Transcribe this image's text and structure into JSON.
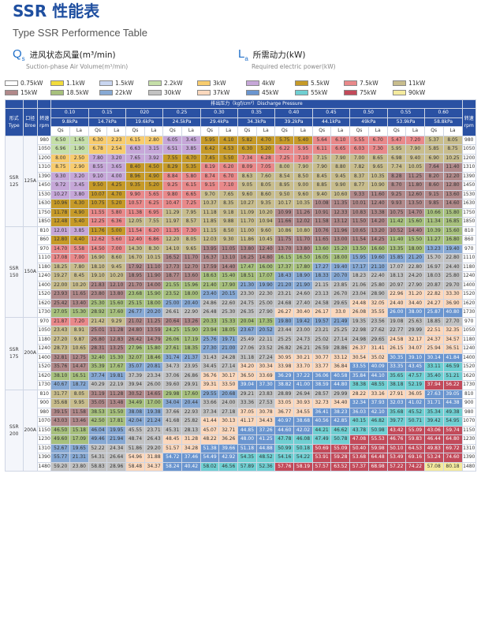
{
  "title": "SSR 性能表",
  "subtitle": "Type SSR Performence Table",
  "legend_qs": {
    "symbol": "Q",
    "sub": "s",
    "cn": "进风状态风量(m³/min)",
    "en": "Suction-phase Air Volume(m³/min)"
  },
  "legend_la": {
    "symbol": "L",
    "sub": "a",
    "cn": "所需动力(kW)",
    "en": "Required electric power(kW)"
  },
  "power_legend": [
    {
      "label": "0.75kW",
      "color": "#ffffff"
    },
    {
      "label": "1.1kW",
      "color": "#f2dc3c"
    },
    {
      "label": "1.5kW",
      "color": "#c9d6f0"
    },
    {
      "label": "2.2kW",
      "color": "#c5dfa8"
    },
    {
      "label": "3kW",
      "color": "#f8cc6e"
    },
    {
      "label": "4kW",
      "color": "#c6a7d8"
    },
    {
      "label": "5.5kW",
      "color": "#c69a28"
    },
    {
      "label": "7.5kW",
      "color": "#e9898a"
    },
    {
      "label": "11kW",
      "color": "#c8bd8d"
    },
    {
      "label": "15kW",
      "color": "#b1898a"
    },
    {
      "label": "18.5kW",
      "color": "#a7c07d"
    },
    {
      "label": "22kW",
      "color": "#87a9d4"
    },
    {
      "label": "30kW",
      "color": "#c2c2c2"
    },
    {
      "label": "37kW",
      "color": "#fbd8bd"
    },
    {
      "label": "45kW",
      "color": "#6a95cf"
    },
    {
      "label": "55kW",
      "color": "#6fcfd2"
    },
    {
      "label": "75kW",
      "color": "#c24a5a"
    },
    {
      "label": "90kW",
      "color": "#f4ea9e"
    }
  ],
  "table": {
    "pressure_header": "排出压力（kgf/cm²）Discharge Pressure",
    "form_cn": "形式",
    "form_en": "Type",
    "bore_cn": "口径",
    "bore_en": "Broe",
    "rpm_cn": "转速",
    "rpm_en": "rpm",
    "qs": "Qs",
    "la": "La",
    "pressures": [
      "0.10",
      "0.15",
      "020",
      "0.25",
      "0.30",
      "0.35",
      "0.40",
      "0.45",
      "0.50",
      "0.55",
      "0.60"
    ],
    "kpa": [
      "9.8kPa",
      "14.7kPa",
      "19.6kPa",
      "24.5kPa",
      "29.4kPa",
      "34.3kPa",
      "39.2kPa",
      "44.1kPa",
      "49kPa",
      "53.9kPa",
      "58.8kPa"
    ],
    "models": [
      {
        "name": "SSR\n125",
        "bore": "125A",
        "rows": [
          [
            "980",
            "6.50 1.65 6.30 2.23 6.15 2.80 6.05 3.45 5.95 4.10 5.82 4.70 5.75 5.40 5.64 6.10 5.55 6.70 5.47 7.20 5.37 8.05"
          ],
          [
            "1050",
            "6.96 1.90 6.78 2.54 6.63 3.15 6.51 3.85 6.42 4.53 6.30 5.20 6.22 5.95 6.11 6.65 6.03 7.30 5.95 7.90 5.85 8.75"
          ],
          [
            "1200",
            "8.00 2.50 7.80 3.20 7.65 3.92 7.55 4.70 7.45 5.50 7.34 6.28 7.25 7.10 7.15 7.90 7.00 8.65 6.98 9.40 6.90 10.25"
          ],
          [
            "1310",
            "8.75 2.90 8.55 3.65 8.40 4.50 8.29 5.35 8.19 6.20 8.09 7.05 8.00 7.90 7.90 8.80 7.82 9.65 7.74 10.05 7.64 11.40"
          ],
          [
            "1390",
            "9.30 3.20 9.10 4.00 8.96 4.90 8.84 5.80 8.74 6.70 8.63 7.60 8.54 8.50 8.45 9.45 8.37 10.35 8.28 11.25 8.20 12.20"
          ],
          [
            "1450",
            "9.72 3.45 9.50 4.25 9.35 5.20 9.25 6.15 9.15 7.10 9.05 8.05 8.95 9.00 8.85 9.90 8.77 10.90 8.70 11.80 8.60 12.80"
          ],
          [
            "1530",
            "10.27 3.80 10.07 4.70 9.90 5.65 9.80 6.65 9.70 7.65 9.60 8.60 9.50 9.60 9.40 10.60 9.33 11.60 9.25 12.60 9.15 13.60"
          ],
          [
            "1630",
            "10.96 4.30 10.75 5.20 10.57 6.25 10.47 7.25 10.37 8.35 10.27 9.35 10.17 10.35 10.08 11.35 10.01 12.40 9.93 13.50 9.85 14.60"
          ],
          [
            "1750",
            "11.78 4.90 11.55 5.80 11.38 6.95 11.29 7.95 11.18 9.18 11.09 10.20 10.99 11.26 10.91 12.33 10.83 13.38 10.75 14.70 10.66 15.80"
          ],
          [
            "1850",
            "12.48 5.40 12.25 6.36 12.05 7.55 11.97 8.57 11.85 9.88 11.70 10.94 11.66 12.02 11.58 13.12 11.50 14.20 11.42 15.60 11.34 16.85"
          ]
        ]
      },
      {
        "name": "SSR\n150",
        "bore": "150A",
        "rows": [
          [
            "810",
            "12.01 3.85 11.76 5.00 11.54 6.20 11.35 7.30 11.15 8.50 11.00 9.60 10.86 10.80 10.76 11.96 10.65 13.20 10.52 14.40 10.39 15.60"
          ],
          [
            "860",
            "12.80 4.40 12.62 5.60 12.40 6.86 12.20 8.05 12.03 9.30 11.86 10.45 11.75 11.70 11.65 13.00 11.54 14.25 11.40 15.50 11.27 16.80"
          ],
          [
            "970",
            "14.70 5.58 14.50 7.00 14.30 8.30 14.10 9.65 13.95 11.05 13.80 12.40 13.70 13.80 13.60 15.20 13.50 16.60 13.35 18.00 13.23 19.40"
          ],
          [
            "1110",
            "17.08 7.00 16.90 8.60 16.70 10.15 16.52 11.70 16.37 13.10 16.25 14.80 16.15 16.50 16.05 18.00 15.95 19.60 15.85 21.20 15.70 22.80"
          ],
          [
            "1180",
            "18.25 7.80 18.10 9.45 17.92 11.10 17.73 12.70 17.59 14.40 17.47 16.00 17.37 17.80 17.27 19.40 17.17 21.10 17.07 22.80 16.97 24.40"
          ],
          [
            "1240",
            "19.27 8.45 19.10 10.20 18.95 11.90 18.77 13.60 18.63 15.40 18.51 17.07 18.43 18.90 18.33 20.70 18.23 22.40 18.13 24.20 18.03 25.80"
          ],
          [
            "1400",
            "22.00 10.20 21.83 12.10 21.70 14.00 21.55 15.96 21.40 17.90 21.30 19.90 21.20 21.90 21.15 23.85 21.06 25.80 20.97 27.90 20.87 29.70"
          ],
          [
            "1520",
            "23.93 11.65 23.80 13.80 23.68 15.90 23.52 18.00 23.40 20.15 23.30 22.30 23.21 24.60 23.13 26.70 23.04 28.90 22.96 31.20 22.82 33.30"
          ],
          [
            "1620",
            "25.42 13.40 25.30 15.60 25.15 18.00 25.00 20.40 24.86 22.60 24.75 25.00 24.68 27.40 24.58 29.65 24.48 32.05 24.40 34.40 24.27 36.90"
          ],
          [
            "1730",
            "27.05 15.30 28.92 17.60 26.77 20.20 26.61 22.90 26.48 25.30 26.35 27.90 26.27 30.40 26.17 33.0 26.08 35.55 26.00 38.00 25.87 40.80"
          ]
        ]
      },
      {
        "name": "SSR\n175",
        "bore": "200A",
        "rows": [
          [
            "970",
            "21.87 7.20 21.42 9.29 21.02 11.25 20.64 13.26 20.33 15.33 20.04 17.35 19.80 19.42 19.57 21.49 19.35 23.56 19.08 25.63 18.85 27.70"
          ],
          [
            "1050",
            "23.43 8.91 25.01 11.28 24.80 13.59 24.25 15.90 23.94 18.05 23.67 20.52 23.44 23.00 23.21 25.25 22.98 27.62 22.77 29.99 22.51 32.35"
          ],
          [
            "1180",
            "27.20 9.87 26.80 12.83 26.42 14.79 26.06 17.19 25.76 19.71 25.49 22.11 25.25 24.73 25.02 27.14 24.98 29.65 24.58 32.17 24.37 34.57"
          ],
          [
            "1240",
            "28.73 10.65 28.31 13.25 27.96 15.80 27.61 18.35 27.30 21.00 27.06 23.52 26.82 26.21 26.59 28.86 26.37 31.41 26.15 34.07 25.94 36.51"
          ],
          [
            "1400",
            "32.81 12.75 32.40 15.30 32.07 18.46 31.74 21.37 31.43 24.28 31.18 27.24 30.95 30.21 30.77 33.12 30.54 35.02 30.35 39.10 30.14 41.84"
          ],
          [
            "1520",
            "35.76 14.47 35.39 17.67 35.07 20.81 34.73 23.95 34.45 27.14 34.20 30.34 33.98 33.70 33.77 36.84 33.55 40.09 33.35 43.45 33.11 46.59"
          ],
          [
            "1620",
            "38.10 16.51 37.74 19.81 37.39 23.34 37.06 26.86 36.76 30.17 36.50 33.69 36.29 37.22 36.06 40.58 35.84 44.10 35.65 47.57 35.40 51.21"
          ],
          [
            "1730",
            "40.67 18.72 40.29 22.19 39.94 26.00 39.60 29.91 39.31 33.50 39.04 37.30 38.82 41.00 38.59 44.80 38.38 48.55 38.18 52.19 37.94 56.22"
          ]
        ]
      },
      {
        "name": "SSR\n200",
        "bore": "200A",
        "rows": [
          [
            "810",
            "31.77 8.05 31.19 11.28 30.52 14.65 29.98 17.60 29.55 20.68 29.21 23.83 28.89 26.94 28.57 29.99 28.22 33.16 27.91 36.05 27.63 39.05"
          ],
          [
            "900",
            "35.68 9.95 35.05 13.48 34.49 17.00 34.04 20.44 33.66 24.00 33.36 27.53 33.05 30.93 32.73 34.40 32.34 37.93 32.03 41.02 31.71 44.38"
          ],
          [
            "980",
            "39.15 11.58 38.53 15.50 38.08 19.38 37.66 22.93 37.34 27.18 37.05 30.78 36.77 34.55 36.41 38.23 36.03 42.10 35.68 45.52 35.34 49.38"
          ],
          [
            "1070",
            "43.03 13.46 42.50 17.81 42.04 21.24 41.68 25.82 41.44 30.13 41.17 34.43 40.97 38.68 40.56 42.85 40.15 46.82 39.77 50.71 39.42 54.95"
          ],
          [
            "1150",
            "46.50 15.18 46.04 19.95 45.55 23.71 45.31 28.13 45.07 32.71 44.85 37.26 44.60 42.02 44.21 46.62 43.78 50.98 43.42 55.09 43.06 59.74"
          ],
          [
            "1230",
            "49.60 17.09 49.46 21.94 48.74 26.43 48.45 31.28 48.22 36.26 48.00 41.25 47.78 46.08 47.49 50.78 47.08 55.53 46.76 59.83 46.44 64.80"
          ],
          [
            "1310",
            "52.67 19.65 52.22 24.34 51.86 29.20 51.57 34.28 51.38 39.66 51.18 44.88 50.99 50.18 50.69 55.09 50.40 59.98 50.10 64.53 49.83 69.72"
          ],
          [
            "1390",
            "55.77 21.31 54.31 26.64 54.96 31.88 54.72 37.46 54.49 42.92 54.35 48.52 54.16 54.22 53.91 59.28 53.68 64.48 53.49 69.16 53.24 74.60"
          ],
          [
            "1480",
            "59.20 23.80 58.83 28.96 58.48 34.37 58.24 40.42 58.02 46.56 57.89 52.36 57.76 58.19 57.57 63.52 57.37 68.98 57.22 74.22 57.08 80.18"
          ]
        ]
      }
    ]
  }
}
